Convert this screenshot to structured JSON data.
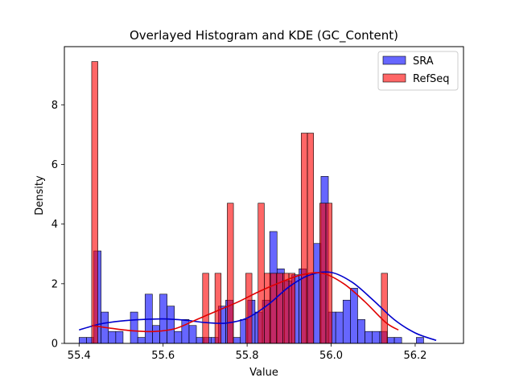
{
  "chart_data": {
    "type": "histogram",
    "title": "Overlayed Histogram and KDE (GC_Content)",
    "xlabel": "Value",
    "ylabel": "Density",
    "xlim": [
      55.365,
      56.315
    ],
    "ylim": [
      0,
      9.95
    ],
    "xticks": [
      55.4,
      55.6,
      55.8,
      56.0,
      56.2
    ],
    "xtick_labels": [
      "55.4",
      "55.6",
      "55.8",
      "56.0",
      "56.2"
    ],
    "yticks": [
      0,
      2,
      4,
      6,
      8
    ],
    "ytick_labels": [
      "0",
      "2",
      "4",
      "6",
      "8"
    ],
    "legend_position": "top-right",
    "series": [
      {
        "name": "SRA",
        "color": "#0000ff",
        "kde_color": "#0000cc",
        "bin_start": 55.4,
        "bin_width": 0.01745,
        "values": [
          0.2,
          0.2,
          3.1,
          1.05,
          0.4,
          0.4,
          0,
          1.05,
          0.2,
          1.65,
          0.6,
          1.65,
          1.25,
          0.4,
          0.8,
          0.6,
          0.2,
          0.2,
          0.2,
          1.25,
          1.45,
          0.2,
          0.8,
          1.45,
          1.05,
          1.45,
          3.75,
          2.5,
          2.1,
          2.3,
          2.5,
          2.3,
          3.35,
          5.6,
          1.05,
          1.05,
          1.45,
          1.85,
          0.8,
          0.4,
          0.4,
          0.4,
          0.2,
          0.2,
          0,
          0,
          0.2
        ],
        "kde": {
          "x": [
            55.4,
            55.45,
            55.5,
            55.55,
            55.6,
            55.65,
            55.7,
            55.75,
            55.8,
            55.85,
            55.9,
            55.95,
            56.0,
            56.05,
            56.1,
            56.15,
            56.2,
            56.25
          ],
          "y": [
            0.45,
            0.65,
            0.75,
            0.8,
            0.82,
            0.78,
            0.7,
            0.68,
            0.85,
            1.3,
            1.9,
            2.3,
            2.38,
            2.05,
            1.45,
            0.8,
            0.35,
            0.1
          ]
        }
      },
      {
        "name": "RefSeq",
        "color": "#ff0000",
        "kde_color": "#e00000",
        "bin_start": 55.43,
        "bin_width": 0.01467,
        "values": [
          9.45,
          0,
          0,
          0,
          0,
          0,
          0,
          0,
          0,
          0,
          0,
          0,
          0,
          0,
          0,
          0,
          0,
          0,
          2.35,
          0,
          2.35,
          0,
          4.7,
          0,
          0,
          2.35,
          0,
          4.7,
          2.35,
          2.35,
          2.35,
          2.35,
          2.35,
          0,
          7.05,
          7.05,
          0,
          4.7,
          4.7,
          0,
          0,
          0,
          0,
          0,
          0,
          0,
          0,
          2.35
        ],
        "kde": {
          "x": [
            55.43,
            55.48,
            55.53,
            55.58,
            55.63,
            55.68,
            55.73,
            55.78,
            55.83,
            55.88,
            55.93,
            55.98,
            56.03,
            56.08,
            56.13,
            56.16
          ],
          "y": [
            0.6,
            0.5,
            0.42,
            0.4,
            0.5,
            0.8,
            1.1,
            1.4,
            1.75,
            2.05,
            2.3,
            2.35,
            2.0,
            1.4,
            0.7,
            0.45
          ]
        }
      }
    ]
  }
}
